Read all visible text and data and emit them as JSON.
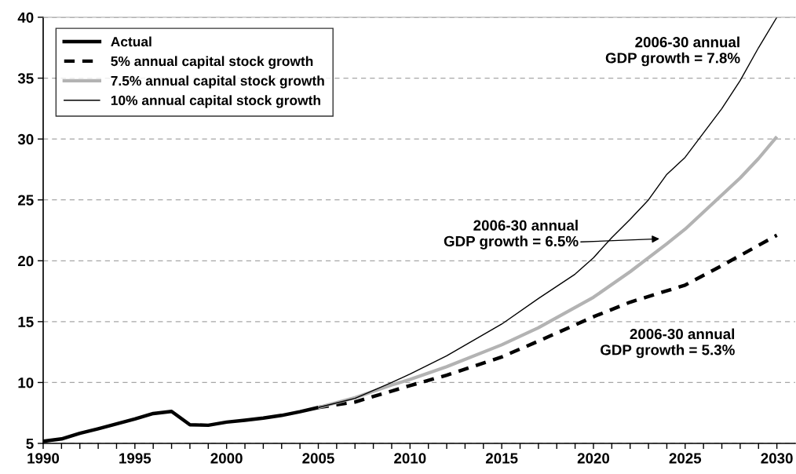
{
  "chart_data": {
    "type": "line",
    "series": [
      {
        "name": "Actual",
        "color": "#000000",
        "line_style": "solid",
        "x": [
          1990,
          1991,
          1992,
          1993,
          1994,
          1995,
          1996,
          1997,
          1998,
          1999,
          2000,
          2001,
          2002,
          2003,
          2004,
          2005
        ],
        "values": [
          5.18,
          5.37,
          5.83,
          6.2,
          6.6,
          7.0,
          7.45,
          7.63,
          6.53,
          6.49,
          6.75,
          6.9,
          7.08,
          7.3,
          7.6,
          7.95
        ]
      },
      {
        "name": "5% annual capital stock growth",
        "color": "#000000",
        "line_style": "dashed",
        "x": [
          2005,
          2007,
          2009,
          2010,
          2012,
          2015,
          2017,
          2020,
          2022,
          2025,
          2027,
          2030
        ],
        "values": [
          7.95,
          8.4,
          9.3,
          9.75,
          10.6,
          12.1,
          13.4,
          15.4,
          16.6,
          18.0,
          19.6,
          22.1
        ]
      },
      {
        "name": "7.5% annual capital stock growth",
        "color": "#b3b3b3",
        "line_style": "solid",
        "x": [
          2005,
          2007,
          2009,
          2010,
          2012,
          2015,
          2017,
          2020,
          2022,
          2024,
          2025,
          2026,
          2028,
          2029,
          2030
        ],
        "values": [
          7.95,
          8.75,
          9.8,
          10.25,
          11.3,
          13.1,
          14.5,
          17.0,
          19.1,
          21.4,
          22.6,
          24.0,
          26.8,
          28.4,
          30.2
        ]
      },
      {
        "name": "10% annual capital stock growth",
        "color": "#000000",
        "line_style": "solid",
        "x": [
          2005,
          2007,
          2009,
          2010,
          2012,
          2015,
          2017,
          2019,
          2020,
          2021,
          2022,
          2023,
          2024,
          2025,
          2026,
          2027,
          2028,
          2029,
          2030
        ],
        "values": [
          7.95,
          8.7,
          10.0,
          10.7,
          12.2,
          14.8,
          16.9,
          18.9,
          20.25,
          21.9,
          23.4,
          25.0,
          27.1,
          28.5,
          30.5,
          32.5,
          34.8,
          37.5,
          40
        ]
      }
    ],
    "xlim": [
      1990,
      2031
    ],
    "xticks": [
      1990,
      {
        "value": 1991,
        "label": null
      },
      {
        "value": 1992,
        "label": null
      },
      {
        "value": 1993,
        "label": null
      },
      {
        "value": 1994,
        "label": null
      },
      1995,
      {
        "value": 1996,
        "label": null
      },
      {
        "value": 1997,
        "label": null
      },
      {
        "value": 1998,
        "label": null
      },
      {
        "value": 1999,
        "label": null
      },
      2000,
      {
        "value": 2001,
        "label": null
      },
      {
        "value": 2002,
        "label": null
      },
      {
        "value": 2003,
        "label": null
      },
      {
        "value": 2004,
        "label": null
      },
      2005,
      {
        "value": 2006,
        "label": null
      },
      {
        "value": 2007,
        "label": null
      },
      {
        "value": 2008,
        "label": null
      },
      {
        "value": 2009,
        "label": null
      },
      2010,
      {
        "value": 2011,
        "label": null
      },
      {
        "value": 2012,
        "label": null
      },
      {
        "value": 2013,
        "label": null
      },
      {
        "value": 2014,
        "label": null
      },
      2015,
      {
        "value": 2016,
        "label": null
      },
      {
        "value": 2017,
        "label": null
      },
      {
        "value": 2018,
        "label": null
      },
      {
        "value": 2019,
        "label": null
      },
      2020,
      {
        "value": 2021,
        "label": null
      },
      {
        "value": 2022,
        "label": null
      },
      {
        "value": 2023,
        "label": null
      },
      {
        "value": 2024,
        "label": null
      },
      2025,
      {
        "value": 2026,
        "label": null
      },
      {
        "value": 2027,
        "label": null
      },
      {
        "value": 2028,
        "label": null
      },
      {
        "value": 2029,
        "label": null
      },
      2030
    ],
    "ylim": [
      5,
      40
    ],
    "yticks": [
      5,
      10,
      15,
      20,
      25,
      30,
      35,
      40
    ],
    "grid": "y",
    "legend": "top left",
    "marker": "none",
    "annotations": [
      "2006-30 annual\nGDP growth = 7.8%",
      "2006-30 annual\nGDP growth = 6.5%",
      "2006-30 annual\nGDP growth = 5.3%"
    ]
  }
}
